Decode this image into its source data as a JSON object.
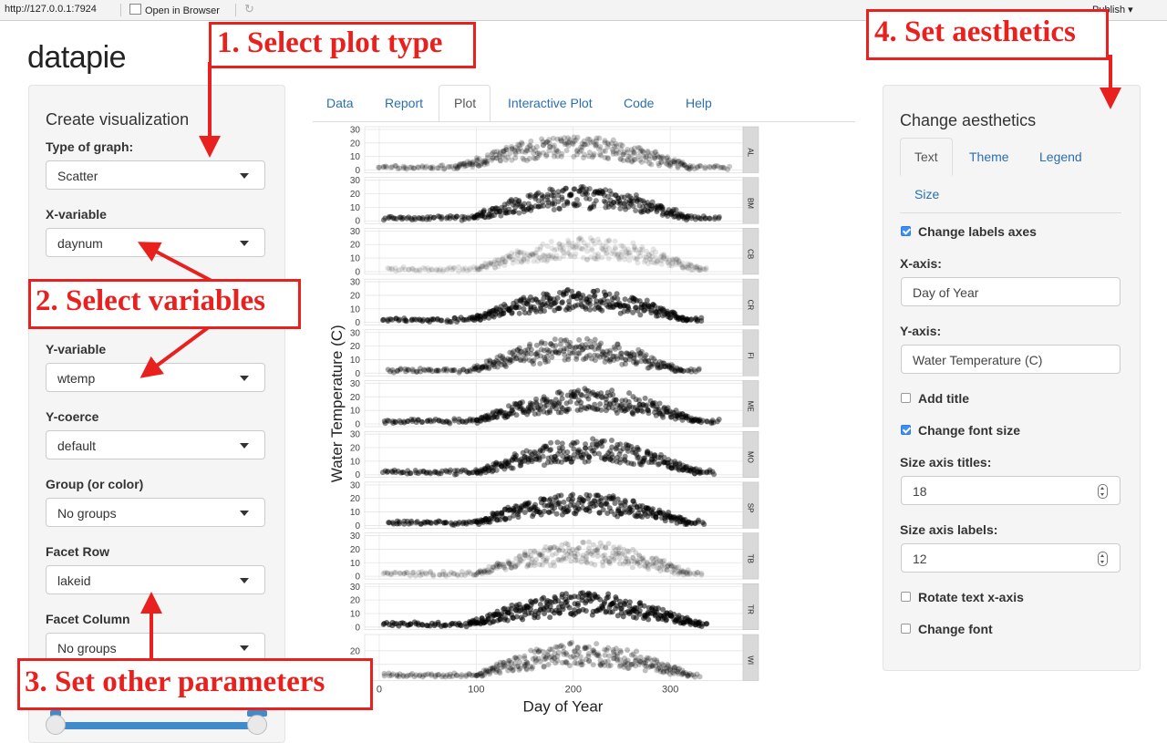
{
  "browser": {
    "url": "http://127.0.0.1:7924",
    "open_in_browser": "Open in Browser",
    "publish": "Publish"
  },
  "app": {
    "title": "datapie"
  },
  "left_panel": {
    "heading": "Create visualization",
    "fields": [
      {
        "label": "Type of graph:",
        "value": "Scatter"
      },
      {
        "label": "X-variable",
        "value": "daynum"
      },
      {
        "label": "Y-variable",
        "value": "wtemp"
      },
      {
        "label": "Y-coerce",
        "value": "default"
      },
      {
        "label": "Group (or color)",
        "value": "No groups"
      },
      {
        "label": "Facet Row",
        "value": "lakeid"
      },
      {
        "label": "Facet Column",
        "value": "No groups"
      }
    ]
  },
  "tabs": [
    "Data",
    "Report",
    "Plot",
    "Interactive Plot",
    "Code",
    "Help"
  ],
  "active_tab": "Plot",
  "right_panel": {
    "heading": "Change aesthetics",
    "tabs": [
      "Text",
      "Theme",
      "Legend",
      "Size"
    ],
    "active_tab": "Text",
    "change_labels_axes": {
      "label": "Change labels axes",
      "checked": true
    },
    "x_axis": {
      "label": "X-axis:",
      "value": "Day of Year"
    },
    "y_axis": {
      "label": "Y-axis:",
      "value": "Water Temperature (C)"
    },
    "add_title": {
      "label": "Add title",
      "checked": false
    },
    "change_font_size": {
      "label": "Change font size",
      "checked": true
    },
    "size_axis_titles": {
      "label": "Size axis titles:",
      "value": "18"
    },
    "size_axis_labels": {
      "label": "Size axis labels:",
      "value": "12"
    },
    "rotate_text_x": {
      "label": "Rotate text x-axis",
      "checked": false
    },
    "change_font": {
      "label": "Change font",
      "checked": false
    }
  },
  "annotations": {
    "step1": "1. Select plot type",
    "step2": "2. Select variables",
    "step3": "3. Set other parameters",
    "step4": "4. Set aesthetics",
    "color": "#e8201e"
  },
  "chart_data": {
    "type": "scatter",
    "xlabel": "Day of Year",
    "ylabel": "Water Temperature (C)",
    "x_ticks": [
      0,
      100,
      200,
      300
    ],
    "xlim": [
      -15,
      375
    ],
    "ylim": [
      -2,
      32
    ],
    "y_ticks": [
      0,
      10,
      20,
      30
    ],
    "last_panel_y_ticks": [
      10,
      20
    ],
    "facets": [
      "AL",
      "BM",
      "CB",
      "CR",
      "FI",
      "ME",
      "MO",
      "SP",
      "TB",
      "TR",
      "WI"
    ],
    "facet_params": [
      {
        "lake": "AL",
        "start": 0,
        "end": 360,
        "rise": 80,
        "fall": 320,
        "peak": 25,
        "opacity": 0.22
      },
      {
        "lake": "BM",
        "start": 5,
        "end": 350,
        "rise": 95,
        "fall": 320,
        "peak": 25,
        "opacity": 0.45
      },
      {
        "lake": "CB",
        "start": 10,
        "end": 340,
        "rise": 100,
        "fall": 330,
        "peak": 25,
        "opacity": 0.1
      },
      {
        "lake": "CR",
        "start": 5,
        "end": 335,
        "rise": 95,
        "fall": 320,
        "peak": 25,
        "opacity": 0.5
      },
      {
        "lake": "FI",
        "start": 10,
        "end": 330,
        "rise": 95,
        "fall": 310,
        "peak": 26,
        "opacity": 0.35
      },
      {
        "lake": "ME",
        "start": 5,
        "end": 350,
        "rise": 100,
        "fall": 330,
        "peak": 26,
        "opacity": 0.45
      },
      {
        "lake": "MO",
        "start": 5,
        "end": 345,
        "rise": 100,
        "fall": 330,
        "peak": 26,
        "opacity": 0.45
      },
      {
        "lake": "SP",
        "start": 10,
        "end": 335,
        "rise": 100,
        "fall": 320,
        "peak": 24,
        "opacity": 0.5
      },
      {
        "lake": "TB",
        "start": 5,
        "end": 335,
        "rise": 100,
        "fall": 320,
        "peak": 25,
        "opacity": 0.15
      },
      {
        "lake": "TR",
        "start": 5,
        "end": 340,
        "rise": 90,
        "fall": 330,
        "peak": 25,
        "opacity": 0.55
      },
      {
        "lake": "WI",
        "start": 5,
        "end": 330,
        "rise": 100,
        "fall": 320,
        "peak": 26,
        "opacity": 0.25
      }
    ]
  }
}
